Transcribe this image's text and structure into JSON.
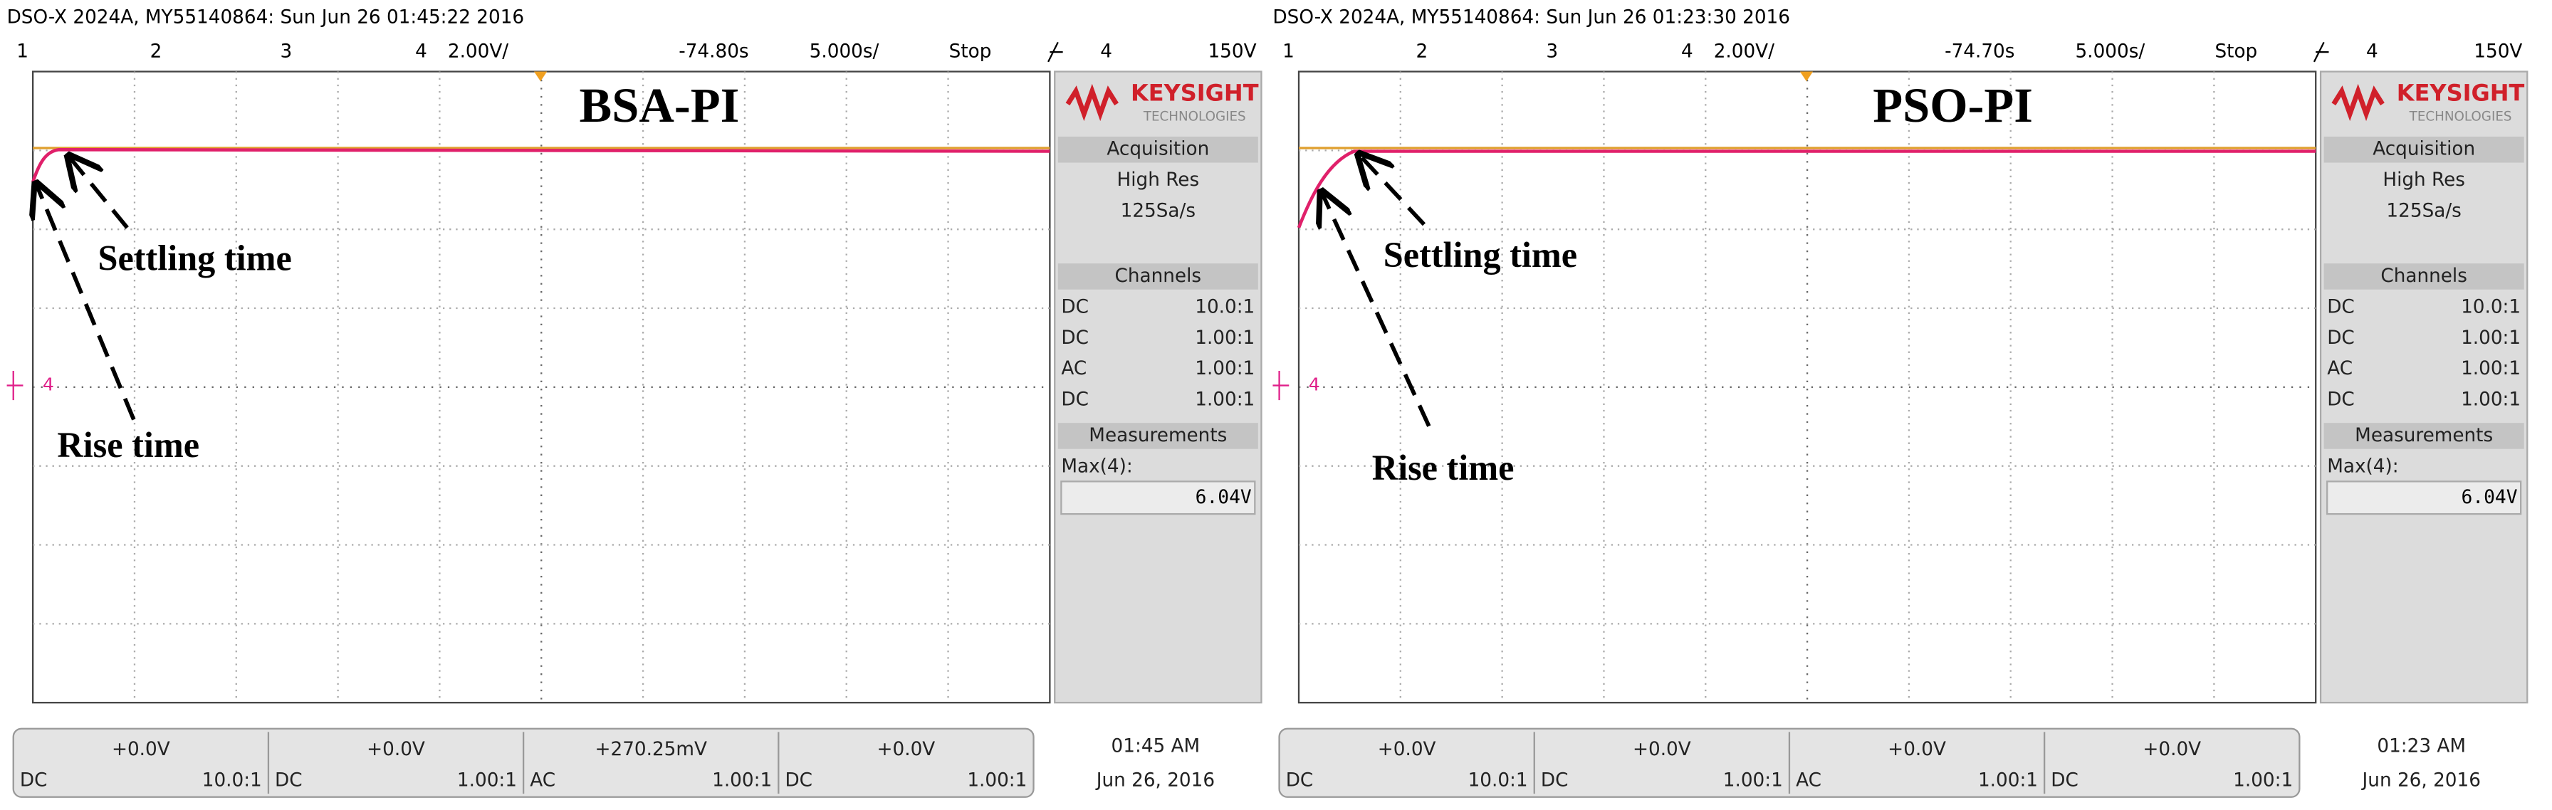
{
  "panels": [
    {
      "header": {
        "instrument": "DSO-X 2024A, MY55140864: Sun Jun 26 01:45:22 2016",
        "channel_numbers": [
          "1",
          "2",
          "3",
          "4"
        ],
        "vertical_scale": "2.00V/",
        "time_offset": "-74.80s",
        "timebase": "5.000s/",
        "run_state": "Stop",
        "trigger_channel": "4",
        "trigger_level": "150V"
      },
      "title": "BSA-PI",
      "settling_label": "Settling  time",
      "rise_label": "Rise time",
      "ground_marker": "4",
      "sidebar": {
        "brand": "KEYSIGHT",
        "brand_sub": "TECHNOLOGIES",
        "acquisition_title": "Acquisition",
        "acquisition_mode": "High Res",
        "sample_rate": "125Sa/s",
        "channels_title": "Channels",
        "channels": [
          {
            "coupling": "DC",
            "probe": "10.0:1"
          },
          {
            "coupling": "DC",
            "probe": "1.00:1"
          },
          {
            "coupling": "AC",
            "probe": "1.00:1"
          },
          {
            "coupling": "DC",
            "probe": "1.00:1"
          }
        ],
        "measurements_title": "Measurements",
        "measurement_name": "Max(4):",
        "measurement_value": "6.04V"
      },
      "footer": {
        "channels": [
          {
            "offset": "+0.0V",
            "coupling": "DC",
            "probe": "10.0:1"
          },
          {
            "offset": "+0.0V",
            "coupling": "DC",
            "probe": "1.00:1"
          },
          {
            "offset": "+270.25mV",
            "coupling": "AC",
            "probe": "1.00:1"
          },
          {
            "offset": "+0.0V",
            "coupling": "DC",
            "probe": "1.00:1"
          }
        ],
        "time": "01:45 AM",
        "date": "Jun 26, 2016"
      }
    },
    {
      "header": {
        "instrument": "DSO-X 2024A, MY55140864: Sun Jun 26 01:23:30 2016",
        "channel_numbers": [
          "1",
          "2",
          "3",
          "4"
        ],
        "vertical_scale": "2.00V/",
        "time_offset": "-74.70s",
        "timebase": "5.000s/",
        "run_state": "Stop",
        "trigger_channel": "4",
        "trigger_level": "150V"
      },
      "title": "PSO-PI",
      "settling_label": "Settling  time",
      "rise_label": "Rise time",
      "ground_marker": "4",
      "sidebar": {
        "brand": "KEYSIGHT",
        "brand_sub": "TECHNOLOGIES",
        "acquisition_title": "Acquisition",
        "acquisition_mode": "High Res",
        "sample_rate": "125Sa/s",
        "channels_title": "Channels",
        "channels": [
          {
            "coupling": "DC",
            "probe": "10.0:1"
          },
          {
            "coupling": "DC",
            "probe": "1.00:1"
          },
          {
            "coupling": "AC",
            "probe": "1.00:1"
          },
          {
            "coupling": "DC",
            "probe": "1.00:1"
          }
        ],
        "measurements_title": "Measurements",
        "measurement_name": "Max(4):",
        "measurement_value": "6.04V"
      },
      "footer": {
        "channels": [
          {
            "offset": "+0.0V",
            "coupling": "DC",
            "probe": "10.0:1"
          },
          {
            "offset": "+0.0V",
            "coupling": "DC",
            "probe": "1.00:1"
          },
          {
            "offset": "+0.0V",
            "coupling": "AC",
            "probe": "1.00:1"
          },
          {
            "offset": "+0.0V",
            "coupling": "DC",
            "probe": "1.00:1"
          }
        ],
        "time": "01:23 AM",
        "date": "Jun 26, 2016"
      }
    }
  ]
}
